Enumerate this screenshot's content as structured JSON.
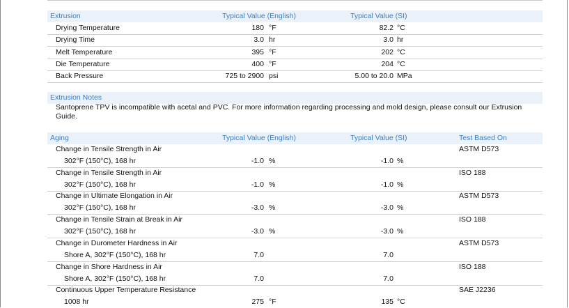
{
  "extrusion": {
    "title": "Extrusion",
    "col_english": "Typical Value  (English)",
    "col_si": "Typical Value  (SI)",
    "rows": [
      {
        "name": "Drying Temperature",
        "eng_val": "180",
        "eng_unit": "°F",
        "si_val": "82.2",
        "si_unit": "°C"
      },
      {
        "name": "Drying Time",
        "eng_val": "3.0",
        "eng_unit": "hr",
        "si_val": "3.0",
        "si_unit": "hr"
      },
      {
        "name": "Melt Temperature",
        "eng_val": "395",
        "eng_unit": "°F",
        "si_val": "202",
        "si_unit": "°C"
      },
      {
        "name": "Die Temperature",
        "eng_val": "400",
        "eng_unit": "°F",
        "si_val": "204",
        "si_unit": "°C"
      },
      {
        "name": "Back Pressure",
        "eng_val": "725 to 2900",
        "eng_unit": "psi",
        "si_val": "5.00 to 20.0",
        "si_unit": "MPa"
      }
    ]
  },
  "extrusion_notes": {
    "title": "Extrusion Notes",
    "text": "Santoprene TPV is incompatible with acetal and PVC. For more information regarding processing and mold design, please consult our Extrusion Guide."
  },
  "aging": {
    "title": "Aging",
    "col_english": "Typical Value  (English)",
    "col_si": "Typical Value  (SI)",
    "col_test": "Test Based On",
    "rows": [
      {
        "name": "Change in Tensile Strength in Air",
        "test": "ASTM D573",
        "cond": "302°F (150°C), 168 hr",
        "eng_val": "-1.0",
        "eng_unit": "%",
        "si_val": "-1.0",
        "si_unit": "%"
      },
      {
        "name": "Change in Tensile Strength in Air",
        "test": "ISO 188",
        "cond": "302°F (150°C), 168 hr",
        "eng_val": "-1.0",
        "eng_unit": "%",
        "si_val": "-1.0",
        "si_unit": "%"
      },
      {
        "name": "Change in Ultimate Elongation in Air",
        "test": "ASTM D573",
        "cond": "302°F (150°C), 168 hr",
        "eng_val": "-3.0",
        "eng_unit": "%",
        "si_val": "-3.0",
        "si_unit": "%"
      },
      {
        "name": "Change in Tensile Strain at Break in Air",
        "test": "ISO 188",
        "cond": "302°F (150°C), 168 hr",
        "eng_val": "-3.0",
        "eng_unit": "%",
        "si_val": "-3.0",
        "si_unit": "%"
      },
      {
        "name": "Change in Durometer Hardness in Air",
        "test": "ASTM D573",
        "cond": "Shore A, 302°F (150°C), 168 hr",
        "eng_val": "7.0",
        "eng_unit": "",
        "si_val": "7.0",
        "si_unit": ""
      },
      {
        "name": "Change in Shore Hardness in Air",
        "test": "ISO 188",
        "cond": "Shore A, 302°F (150°C), 168 hr",
        "eng_val": "7.0",
        "eng_unit": "",
        "si_val": "7.0",
        "si_unit": ""
      },
      {
        "name": "Continuous Upper Temperature Resistance",
        "test": "SAE J2236",
        "cond": "1008 hr",
        "eng_val": "275",
        "eng_unit": "°F",
        "si_val": "135",
        "si_unit": "°C"
      }
    ]
  }
}
